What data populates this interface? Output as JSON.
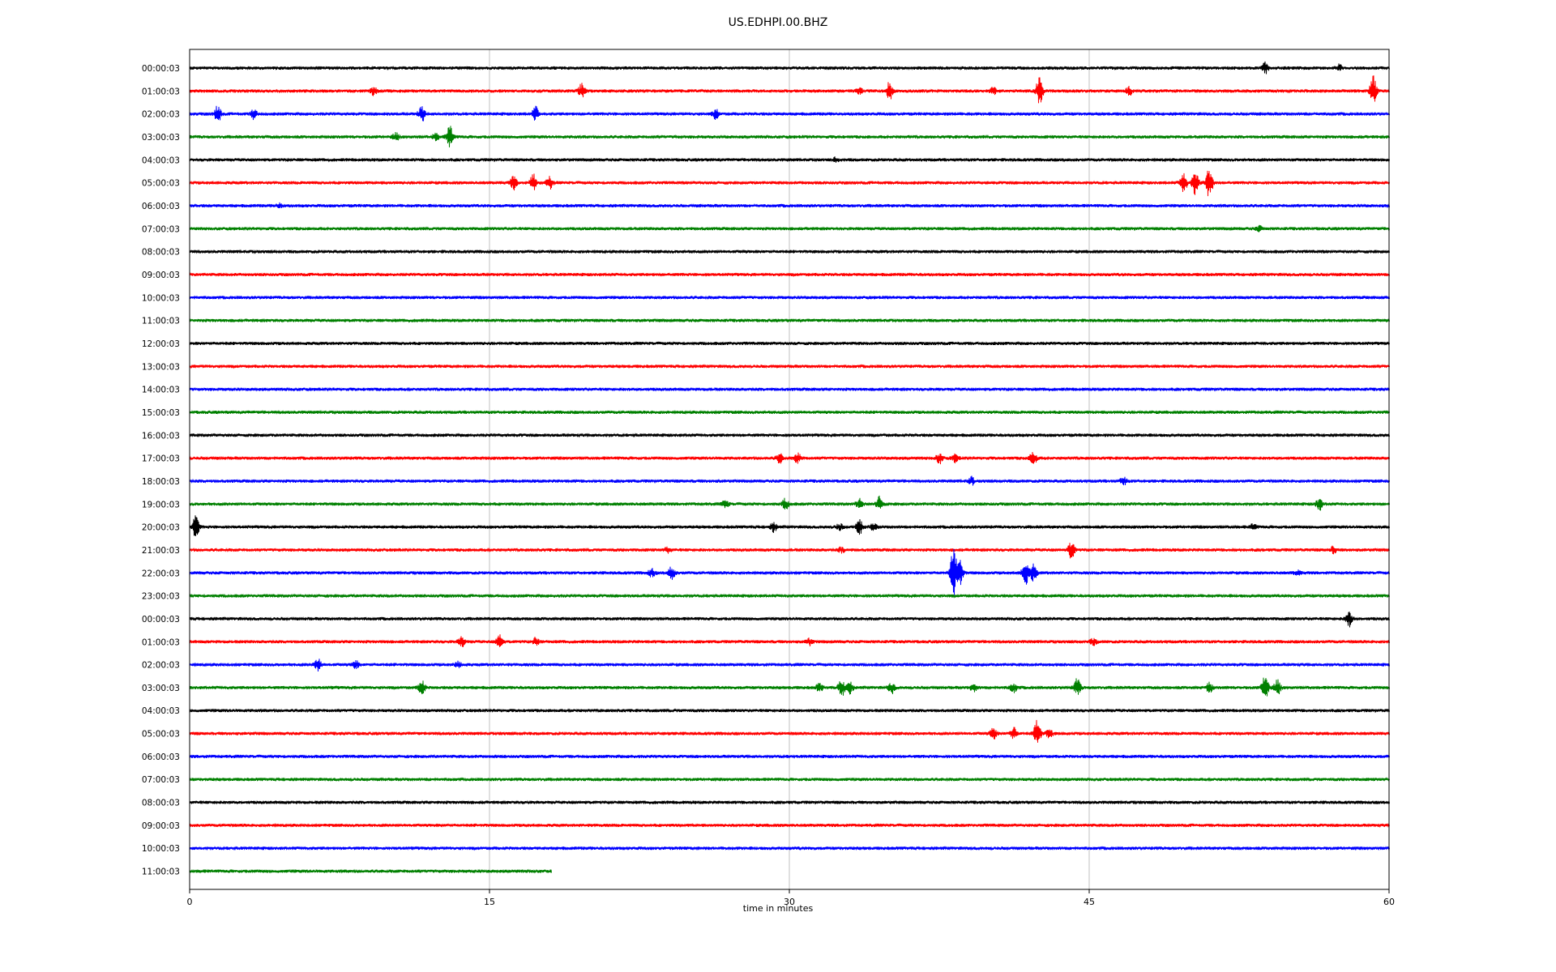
{
  "chart_data": {
    "type": "line",
    "title": "US.EDHPI.00.BHZ",
    "xlabel": "time in minutes",
    "ylabel": "",
    "xlim": [
      0,
      60
    ],
    "x_ticks": [
      "0",
      "15",
      "30",
      "45",
      "60"
    ],
    "x_tick_values": [
      0,
      15,
      30,
      45,
      60
    ],
    "grid": "vertical",
    "trace_colors": [
      "#000000",
      "#ff0000",
      "#0000ff",
      "#008000"
    ],
    "rows": [
      {
        "label": "00:00:03",
        "duration": 60,
        "events": [
          {
            "t": 53.8,
            "a": 8
          },
          {
            "t": 57.5,
            "a": 5
          }
        ]
      },
      {
        "label": "01:00:03",
        "duration": 60,
        "events": [
          {
            "t": 9.2,
            "a": 6
          },
          {
            "t": 19.6,
            "a": 11
          },
          {
            "t": 33.5,
            "a": 5
          },
          {
            "t": 35.0,
            "a": 14
          },
          {
            "t": 40.2,
            "a": 6
          },
          {
            "t": 42.5,
            "a": 24
          },
          {
            "t": 47.0,
            "a": 6
          },
          {
            "t": 59.2,
            "a": 24
          }
        ]
      },
      {
        "label": "02:00:03",
        "duration": 60,
        "events": [
          {
            "t": 1.4,
            "a": 14
          },
          {
            "t": 3.2,
            "a": 8
          },
          {
            "t": 11.6,
            "a": 12
          },
          {
            "t": 17.3,
            "a": 11
          },
          {
            "t": 26.3,
            "a": 8
          }
        ]
      },
      {
        "label": "03:00:03",
        "duration": 60,
        "events": [
          {
            "t": 10.3,
            "a": 6
          },
          {
            "t": 12.3,
            "a": 5
          },
          {
            "t": 13.0,
            "a": 18
          }
        ]
      },
      {
        "label": "04:00:03",
        "duration": 60,
        "events": [
          {
            "t": 32.3,
            "a": 3
          }
        ]
      },
      {
        "label": "05:00:03",
        "duration": 60,
        "events": [
          {
            "t": 16.2,
            "a": 10
          },
          {
            "t": 17.2,
            "a": 14
          },
          {
            "t": 18.0,
            "a": 9
          },
          {
            "t": 49.7,
            "a": 18
          },
          {
            "t": 50.3,
            "a": 22
          },
          {
            "t": 51.0,
            "a": 26
          }
        ]
      },
      {
        "label": "06:00:03",
        "duration": 60,
        "events": [
          {
            "t": 4.5,
            "a": 3
          }
        ]
      },
      {
        "label": "07:00:03",
        "duration": 60,
        "events": [
          {
            "t": 53.5,
            "a": 4
          }
        ]
      },
      {
        "label": "08:00:03",
        "duration": 60,
        "events": []
      },
      {
        "label": "09:00:03",
        "duration": 60,
        "events": []
      },
      {
        "label": "10:00:03",
        "duration": 60,
        "events": []
      },
      {
        "label": "11:00:03",
        "duration": 60,
        "events": []
      },
      {
        "label": "12:00:03",
        "duration": 60,
        "events": []
      },
      {
        "label": "13:00:03",
        "duration": 60,
        "events": []
      },
      {
        "label": "14:00:03",
        "duration": 60,
        "events": []
      },
      {
        "label": "15:00:03",
        "duration": 60,
        "events": []
      },
      {
        "label": "16:00:03",
        "duration": 60,
        "events": []
      },
      {
        "label": "17:00:03",
        "duration": 60,
        "events": [
          {
            "t": 29.5,
            "a": 8
          },
          {
            "t": 30.4,
            "a": 9
          },
          {
            "t": 37.5,
            "a": 8
          },
          {
            "t": 38.3,
            "a": 6
          },
          {
            "t": 42.2,
            "a": 12
          }
        ]
      },
      {
        "label": "18:00:03",
        "duration": 60,
        "events": [
          {
            "t": 39.1,
            "a": 6
          },
          {
            "t": 46.7,
            "a": 6
          }
        ]
      },
      {
        "label": "19:00:03",
        "duration": 60,
        "events": [
          {
            "t": 26.8,
            "a": 6
          },
          {
            "t": 29.8,
            "a": 8
          },
          {
            "t": 33.5,
            "a": 9
          },
          {
            "t": 34.5,
            "a": 11
          },
          {
            "t": 56.5,
            "a": 9
          }
        ]
      },
      {
        "label": "20:00:03",
        "duration": 60,
        "events": [
          {
            "t": 0.3,
            "a": 18
          },
          {
            "t": 29.2,
            "a": 7
          },
          {
            "t": 32.5,
            "a": 5
          },
          {
            "t": 33.5,
            "a": 11
          },
          {
            "t": 34.2,
            "a": 5
          },
          {
            "t": 53.2,
            "a": 4
          }
        ]
      },
      {
        "label": "21:00:03",
        "duration": 60,
        "events": [
          {
            "t": 23.9,
            "a": 4
          },
          {
            "t": 32.6,
            "a": 4
          },
          {
            "t": 44.1,
            "a": 14
          },
          {
            "t": 57.2,
            "a": 5
          }
        ]
      },
      {
        "label": "22:00:03",
        "duration": 60,
        "events": [
          {
            "t": 23.1,
            "a": 6
          },
          {
            "t": 24.1,
            "a": 9
          },
          {
            "t": 38.2,
            "a": 36
          },
          {
            "t": 38.5,
            "a": 24
          },
          {
            "t": 41.8,
            "a": 18
          },
          {
            "t": 42.2,
            "a": 14
          },
          {
            "t": 55.4,
            "a": 4
          }
        ]
      },
      {
        "label": "23:00:03",
        "duration": 60,
        "events": []
      },
      {
        "label": "00:00:03",
        "duration": 60,
        "events": [
          {
            "t": 58.0,
            "a": 12
          }
        ]
      },
      {
        "label": "01:00:03",
        "duration": 60,
        "events": [
          {
            "t": 13.6,
            "a": 8
          },
          {
            "t": 15.5,
            "a": 10
          },
          {
            "t": 17.3,
            "a": 6
          },
          {
            "t": 31.0,
            "a": 5
          },
          {
            "t": 45.2,
            "a": 5
          }
        ]
      },
      {
        "label": "02:00:03",
        "duration": 60,
        "events": [
          {
            "t": 6.4,
            "a": 10
          },
          {
            "t": 8.3,
            "a": 6
          },
          {
            "t": 13.4,
            "a": 5
          }
        ]
      },
      {
        "label": "03:00:03",
        "duration": 60,
        "events": [
          {
            "t": 11.6,
            "a": 12
          },
          {
            "t": 31.5,
            "a": 6
          },
          {
            "t": 32.6,
            "a": 14
          },
          {
            "t": 33.0,
            "a": 10
          },
          {
            "t": 35.1,
            "a": 9
          },
          {
            "t": 39.2,
            "a": 6
          },
          {
            "t": 41.2,
            "a": 8
          },
          {
            "t": 44.4,
            "a": 14
          },
          {
            "t": 51.0,
            "a": 7
          },
          {
            "t": 53.8,
            "a": 22
          },
          {
            "t": 54.4,
            "a": 12
          }
        ]
      },
      {
        "label": "04:00:03",
        "duration": 60,
        "events": []
      },
      {
        "label": "05:00:03",
        "duration": 60,
        "events": [
          {
            "t": 40.2,
            "a": 9
          },
          {
            "t": 41.2,
            "a": 10
          },
          {
            "t": 42.4,
            "a": 22
          },
          {
            "t": 43.0,
            "a": 7
          }
        ]
      },
      {
        "label": "06:00:03",
        "duration": 60,
        "events": []
      },
      {
        "label": "07:00:03",
        "duration": 60,
        "events": []
      },
      {
        "label": "08:00:03",
        "duration": 60,
        "events": []
      },
      {
        "label": "09:00:03",
        "duration": 60,
        "events": []
      },
      {
        "label": "10:00:03",
        "duration": 60,
        "events": []
      },
      {
        "label": "11:00:03",
        "duration": 18.1,
        "events": []
      }
    ]
  }
}
